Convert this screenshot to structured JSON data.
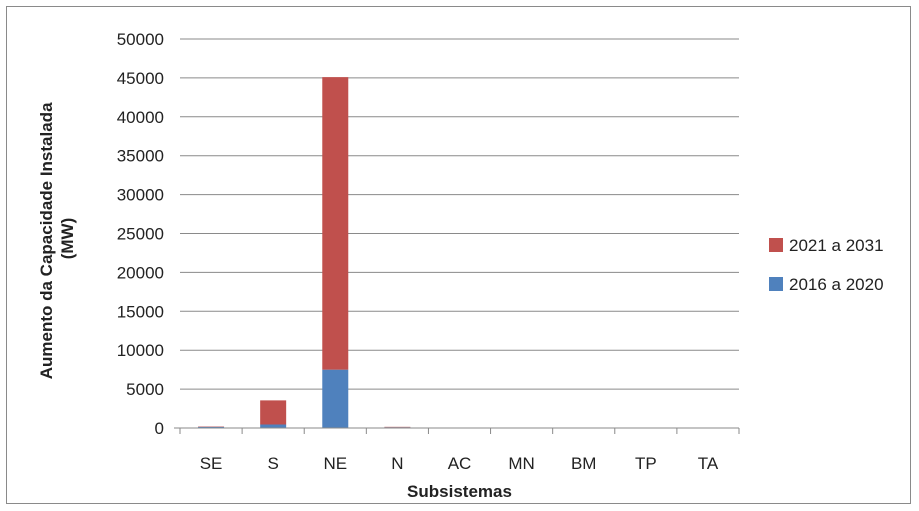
{
  "chart_data": {
    "type": "bar",
    "stacked": true,
    "categories": [
      "SE",
      "S",
      "NE",
      "N",
      "AC",
      "MN",
      "BM",
      "TP",
      "TA"
    ],
    "series": [
      {
        "name": "2016 a 2020",
        "color": "#4f81bd",
        "values": [
          150,
          450,
          7500,
          100,
          0,
          0,
          0,
          0,
          0
        ]
      },
      {
        "name": "2021 a 2031",
        "color": "#c0504d",
        "values": [
          50,
          3100,
          37600,
          50,
          0,
          0,
          0,
          0,
          0
        ]
      }
    ],
    "title": "",
    "xlabel": "Subsistemas",
    "ylabel_lines": [
      "Aumento da Capacidade Instalada",
      "(MW)"
    ],
    "ylim": [
      0,
      50000
    ],
    "yticks": [
      0,
      5000,
      10000,
      15000,
      20000,
      25000,
      30000,
      35000,
      40000,
      45000,
      50000
    ],
    "grid": true,
    "legend_position": "right"
  }
}
